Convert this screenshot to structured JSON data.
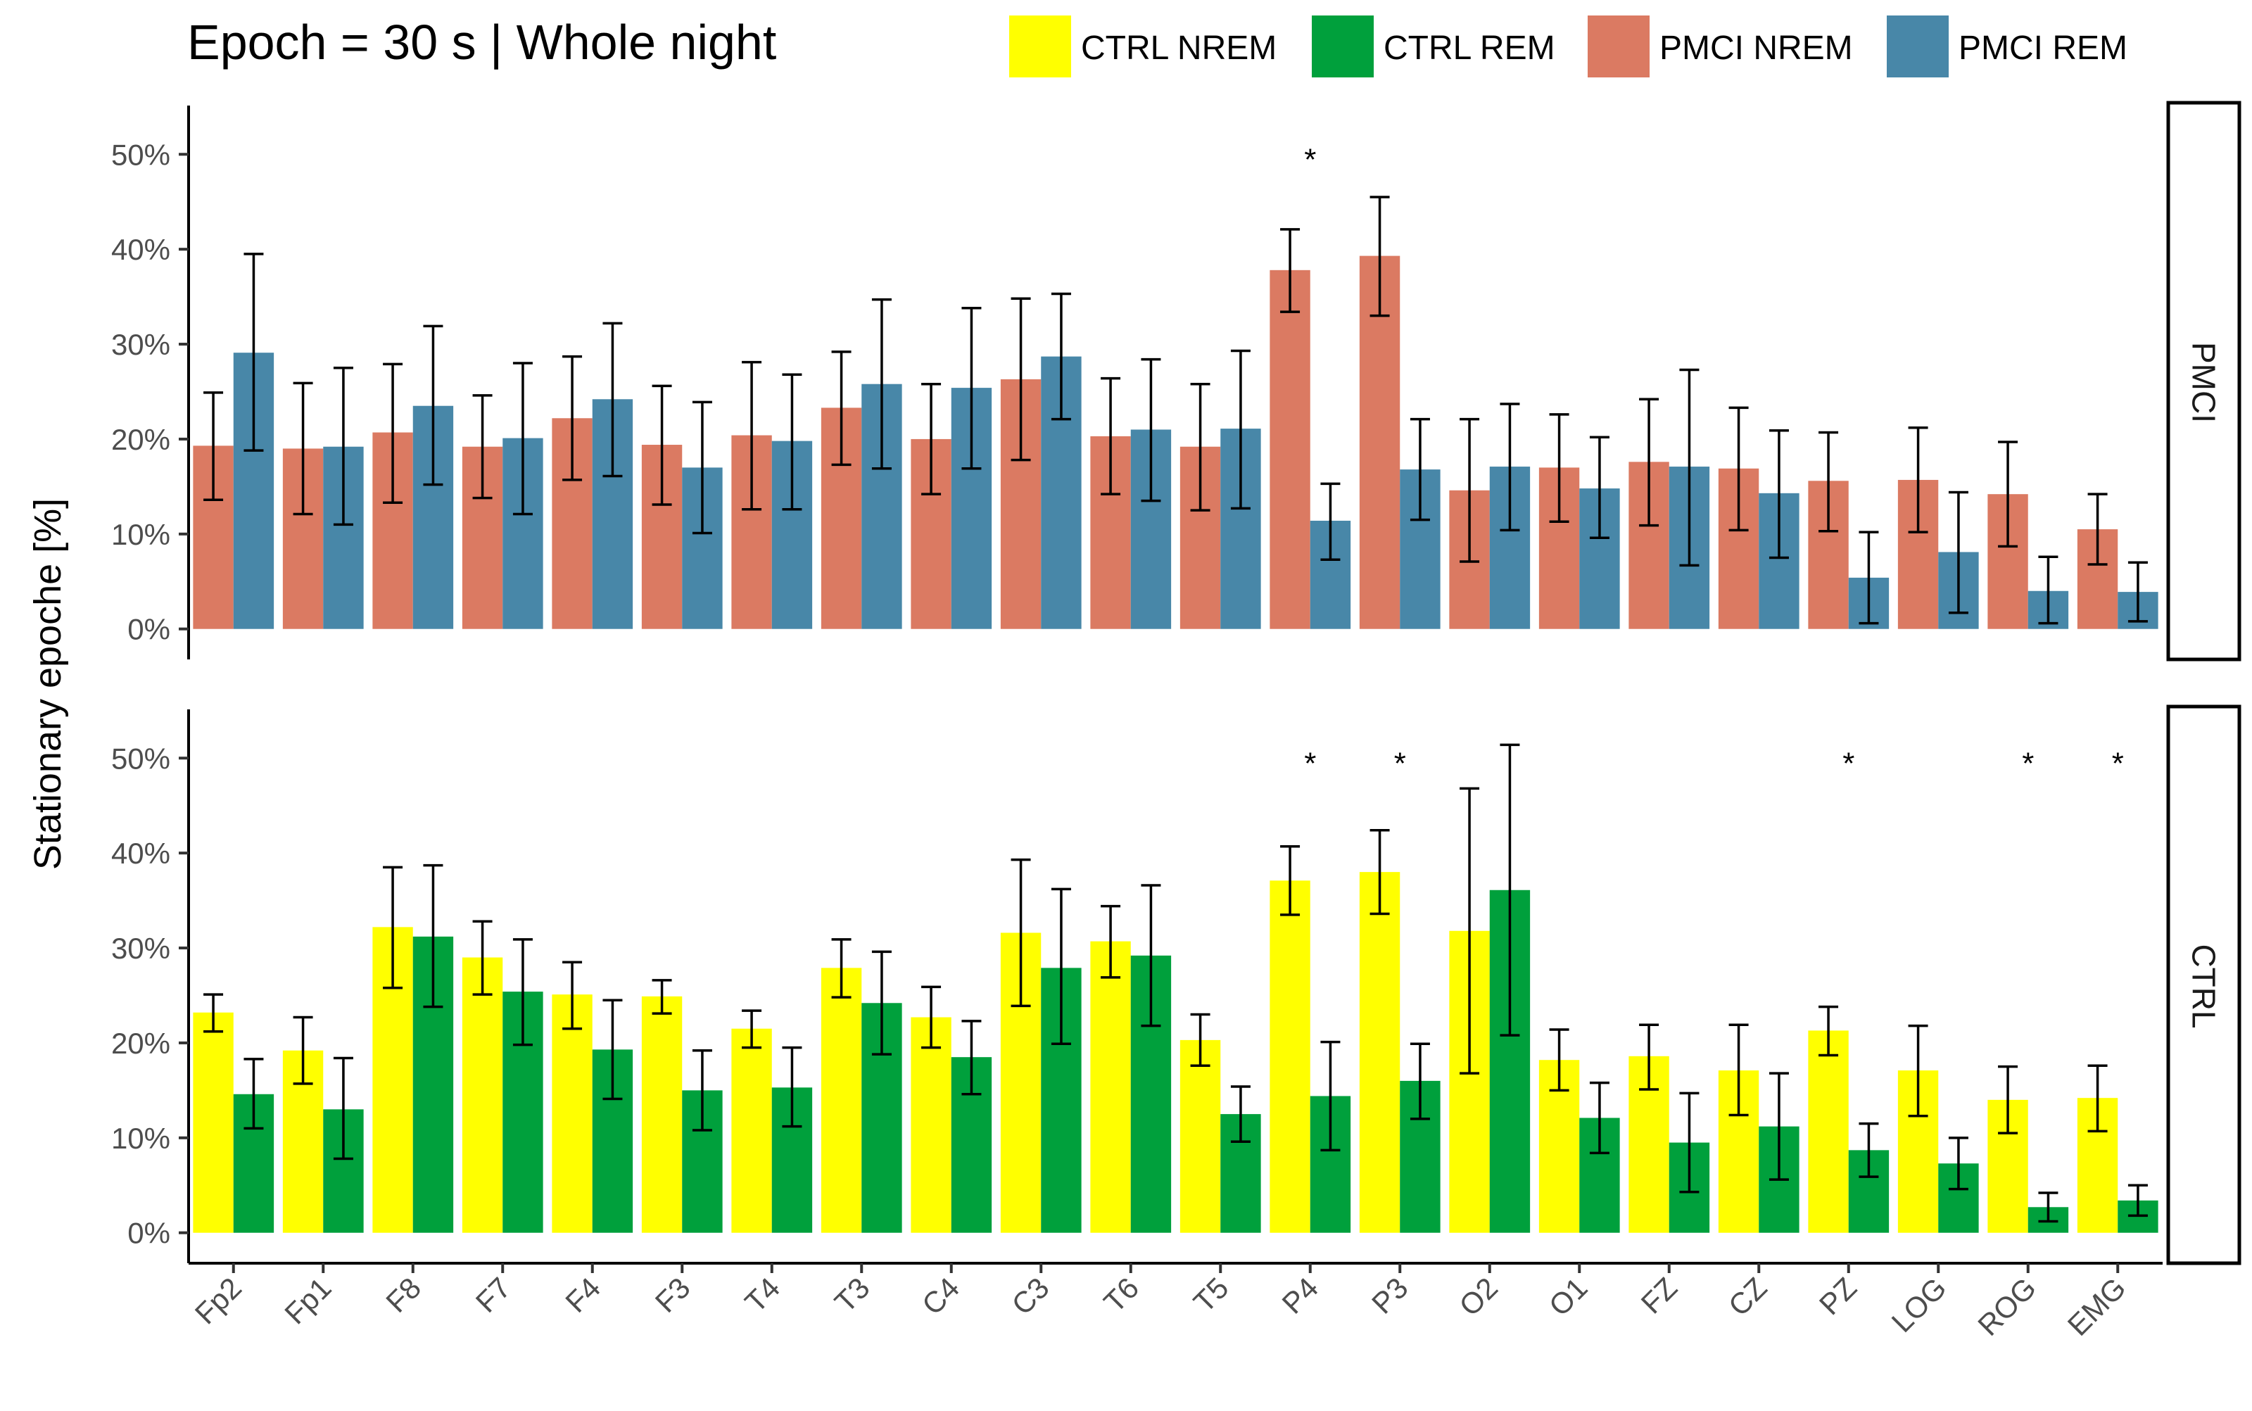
{
  "title": "Epoch = 30 s | Whole night",
  "ylabel": "Stationary epoche [%]",
  "legend": [
    {
      "label": "CTRL NREM",
      "color": "#FFFF00"
    },
    {
      "label": "CTRL REM",
      "color": "#00A03C"
    },
    {
      "label": "PMCI NREM",
      "color": "#DB7A62"
    },
    {
      "label": "PMCI REM",
      "color": "#4887A8"
    }
  ],
  "chart_data": {
    "type": "bar",
    "categories": [
      "Fp2",
      "Fp1",
      "F8",
      "F7",
      "F4",
      "F3",
      "T4",
      "T3",
      "C4",
      "C3",
      "T6",
      "T5",
      "P4",
      "P3",
      "O2",
      "O1",
      "FZ",
      "CZ",
      "PZ",
      "LOG",
      "ROG",
      "EMG"
    ],
    "ylim": [
      0,
      50
    ],
    "yticks": [
      0,
      10,
      20,
      30,
      40,
      50
    ],
    "ytick_labels": [
      "0%",
      "10%",
      "20%",
      "30%",
      "40%",
      "50%"
    ],
    "grid": false,
    "legend_position": "top",
    "panels": [
      {
        "strip": "PMCI",
        "series": [
          {
            "name": "PMCI NREM",
            "color": "#DB7A62",
            "values": [
              19.3,
              19.0,
              20.7,
              19.2,
              22.2,
              19.4,
              20.4,
              23.3,
              20.0,
              26.3,
              20.3,
              19.2,
              37.8,
              39.3,
              14.6,
              17.0,
              17.6,
              16.9,
              15.6,
              15.7,
              14.2,
              10.5
            ],
            "err_low": [
              13.6,
              12.1,
              13.3,
              13.8,
              15.7,
              13.1,
              12.6,
              17.3,
              14.2,
              17.8,
              14.2,
              12.5,
              33.4,
              33.0,
              7.1,
              11.3,
              10.9,
              10.4,
              10.3,
              10.2,
              8.7,
              6.8
            ],
            "err_high": [
              24.9,
              25.9,
              27.9,
              24.6,
              28.7,
              25.6,
              28.1,
              29.2,
              25.8,
              34.8,
              26.4,
              25.8,
              42.1,
              45.5,
              22.1,
              22.6,
              24.2,
              23.3,
              20.7,
              21.2,
              19.7,
              14.2
            ]
          },
          {
            "name": "PMCI REM",
            "color": "#4887A8",
            "values": [
              29.1,
              19.2,
              23.5,
              20.1,
              24.2,
              17.0,
              19.8,
              25.8,
              25.4,
              28.7,
              21.0,
              21.1,
              11.4,
              16.8,
              17.1,
              14.8,
              17.1,
              14.3,
              5.4,
              8.1,
              4.0,
              3.9
            ],
            "err_low": [
              18.8,
              11.0,
              15.2,
              12.1,
              16.1,
              10.1,
              12.6,
              16.9,
              16.9,
              22.1,
              13.5,
              12.7,
              7.3,
              11.5,
              10.4,
              9.6,
              6.7,
              7.5,
              0.6,
              1.7,
              0.6,
              0.8
            ],
            "err_high": [
              39.5,
              27.5,
              31.9,
              28.0,
              32.2,
              23.9,
              26.8,
              34.7,
              33.8,
              35.3,
              28.4,
              29.3,
              15.3,
              22.1,
              23.7,
              20.2,
              27.3,
              20.9,
              10.2,
              14.4,
              7.6,
              7.0
            ]
          }
        ],
        "significant": [
          "P4"
        ]
      },
      {
        "strip": "CTRL",
        "series": [
          {
            "name": "CTRL NREM",
            "color": "#FFFF00",
            "values": [
              23.2,
              19.2,
              32.2,
              29.0,
              25.1,
              24.9,
              21.5,
              27.9,
              22.7,
              31.6,
              30.7,
              20.3,
              37.1,
              38.0,
              31.8,
              18.2,
              18.6,
              17.1,
              21.3,
              17.1,
              14.0,
              14.2
            ],
            "err_low": [
              21.2,
              15.7,
              25.8,
              25.1,
              21.5,
              23.1,
              19.5,
              24.8,
              19.5,
              23.9,
              26.9,
              17.6,
              33.5,
              33.6,
              16.8,
              15.0,
              15.1,
              12.4,
              18.7,
              12.3,
              10.5,
              10.7
            ],
            "err_high": [
              25.1,
              22.7,
              38.5,
              32.8,
              28.5,
              26.6,
              23.4,
              30.9,
              25.9,
              39.3,
              34.4,
              23.0,
              40.7,
              42.4,
              46.8,
              21.4,
              21.9,
              21.9,
              23.8,
              21.8,
              17.5,
              17.6
            ]
          },
          {
            "name": "CTRL REM",
            "color": "#00A03C",
            "values": [
              14.6,
              13.0,
              31.2,
              25.4,
              19.3,
              15.0,
              15.3,
              24.2,
              18.5,
              27.9,
              29.2,
              12.5,
              14.4,
              16.0,
              36.1,
              12.1,
              9.5,
              11.2,
              8.7,
              7.3,
              2.7,
              3.4
            ],
            "err_low": [
              11.0,
              7.8,
              23.8,
              19.8,
              14.1,
              10.8,
              11.2,
              18.8,
              14.6,
              19.9,
              21.8,
              9.6,
              8.7,
              12.0,
              20.8,
              8.4,
              4.3,
              5.6,
              5.9,
              4.6,
              1.2,
              1.8
            ],
            "err_high": [
              18.3,
              18.4,
              38.7,
              30.9,
              24.5,
              19.2,
              19.5,
              29.6,
              22.3,
              36.2,
              36.6,
              15.4,
              20.1,
              19.9,
              51.4,
              15.8,
              14.7,
              16.8,
              11.5,
              10.0,
              4.2,
              5.0
            ]
          }
        ],
        "significant": [
          "P4",
          "P3",
          "PZ",
          "ROG",
          "EMG"
        ]
      }
    ]
  }
}
